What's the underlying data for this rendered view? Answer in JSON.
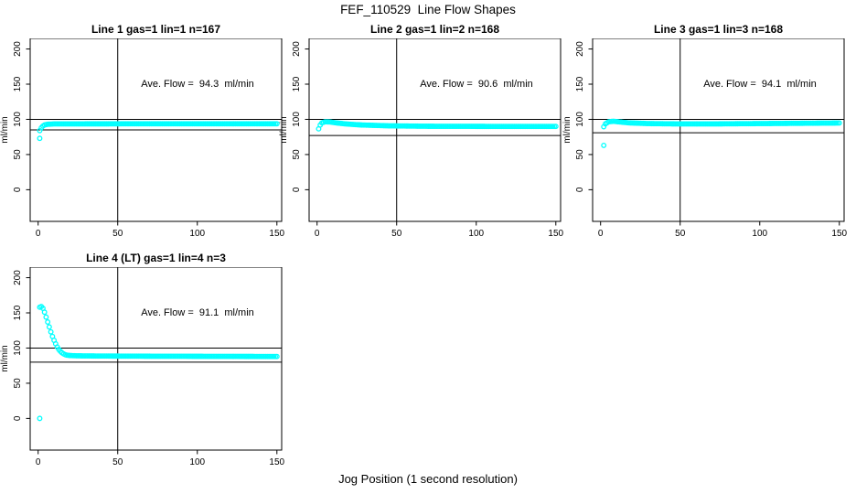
{
  "figure": {
    "title": "FEF_110529  Line Flow Shapes",
    "xlabel": "Jog Position (1 second resolution)"
  },
  "colors": {
    "points": "#00FFFF",
    "lines": "#000000",
    "background": "#FFFFFF"
  },
  "chart_data": [
    {
      "type": "scatter",
      "title": "Line 1 gas=1 lin=1 n=167",
      "annotation": "Ave. Flow =  94.3  ml/min",
      "ave_flow_ml_min": 94.3,
      "n": 167,
      "ylabel": "ml/min",
      "xlim": [
        0,
        150
      ],
      "ylim": [
        0,
        200
      ],
      "x_ticks": [
        0,
        50,
        100,
        150
      ],
      "y_ticks": [
        0,
        50,
        100,
        150,
        200
      ],
      "grid": false,
      "legend": false,
      "marker": "open-circle",
      "hlines": [
        100,
        85
      ],
      "vlines": [
        50
      ],
      "x_step": 1,
      "series_profile": [
        [
          1,
          84
        ],
        [
          2,
          88
        ],
        [
          3,
          90.5
        ],
        [
          4,
          92
        ],
        [
          6,
          93
        ],
        [
          10,
          93.5
        ],
        [
          30,
          93.6
        ],
        [
          80,
          93.7
        ],
        [
          150,
          93.7
        ]
      ],
      "outliers": [
        [
          1,
          73
        ]
      ]
    },
    {
      "type": "scatter",
      "title": "Line 2 gas=1 lin=2 n=168",
      "annotation": "Ave. Flow =  90.6  ml/min",
      "ave_flow_ml_min": 90.6,
      "n": 168,
      "ylabel": "ml/min",
      "xlim": [
        0,
        150
      ],
      "ylim": [
        0,
        200
      ],
      "x_ticks": [
        0,
        50,
        100,
        150
      ],
      "y_ticks": [
        0,
        50,
        100,
        150,
        200
      ],
      "grid": false,
      "legend": false,
      "marker": "open-circle",
      "hlines": [
        100,
        77
      ],
      "vlines": [
        50
      ],
      "x_step": 1,
      "series_profile": [
        [
          1,
          86.5
        ],
        [
          2,
          92
        ],
        [
          3,
          95
        ],
        [
          5,
          96.5
        ],
        [
          8,
          96.3
        ],
        [
          12,
          95
        ],
        [
          18,
          93.5
        ],
        [
          28,
          92
        ],
        [
          45,
          90.8
        ],
        [
          70,
          90.2
        ],
        [
          110,
          90
        ],
        [
          150,
          90
        ]
      ],
      "outliers": []
    },
    {
      "type": "scatter",
      "title": "Line 3 gas=1 lin=3 n=168",
      "annotation": "Ave. Flow =  94.1  ml/min",
      "ave_flow_ml_min": 94.1,
      "n": 168,
      "ylabel": "ml/min",
      "xlim": [
        0,
        150
      ],
      "ylim": [
        0,
        200
      ],
      "x_ticks": [
        0,
        50,
        100,
        150
      ],
      "y_ticks": [
        0,
        50,
        100,
        150,
        200
      ],
      "grid": false,
      "legend": false,
      "marker": "open-circle",
      "hlines": [
        100,
        81
      ],
      "vlines": [
        50
      ],
      "x_step": 1,
      "series_profile": [
        [
          2,
          89.5
        ],
        [
          3,
          93.5
        ],
        [
          5,
          96.5
        ],
        [
          8,
          97.3
        ],
        [
          12,
          96.3
        ],
        [
          18,
          95
        ],
        [
          30,
          94
        ],
        [
          50,
          93.5
        ],
        [
          75,
          93.6
        ],
        [
          100,
          94
        ],
        [
          125,
          94.4
        ],
        [
          150,
          94.8
        ]
      ],
      "outliers": [
        [
          2,
          63
        ]
      ]
    },
    {
      "type": "scatter",
      "title": "Line 4 (LT) gas=1 lin=4 n=3",
      "annotation": "Ave. Flow =  91.1  ml/min",
      "ave_flow_ml_min": 91.1,
      "n": 3,
      "ylabel": "ml/min",
      "xlim": [
        0,
        150
      ],
      "ylim": [
        0,
        200
      ],
      "x_ticks": [
        0,
        50,
        100,
        150
      ],
      "y_ticks": [
        0,
        50,
        100,
        150,
        200
      ],
      "grid": false,
      "legend": false,
      "marker": "open-circle",
      "hlines": [
        100,
        80
      ],
      "vlines": [
        50
      ],
      "x_step": 1,
      "series_profile": [
        [
          1,
          158
        ],
        [
          2,
          159
        ],
        [
          3,
          156.5
        ],
        [
          4,
          151
        ],
        [
          5,
          144
        ],
        [
          6,
          137
        ],
        [
          7,
          130
        ],
        [
          8,
          123
        ],
        [
          9,
          116.5
        ],
        [
          10,
          111
        ],
        [
          11,
          106
        ],
        [
          12,
          101.5
        ],
        [
          13,
          98
        ],
        [
          14,
          95.3
        ],
        [
          15,
          93.2
        ],
        [
          16,
          91.7
        ],
        [
          17,
          90.6
        ],
        [
          18,
          89.9
        ],
        [
          20,
          89.4
        ],
        [
          24,
          89
        ],
        [
          30,
          88.8
        ],
        [
          45,
          88.6
        ],
        [
          70,
          88.4
        ],
        [
          110,
          88.2
        ],
        [
          150,
          88
        ]
      ],
      "outliers": [
        [
          1,
          0
        ]
      ]
    }
  ]
}
